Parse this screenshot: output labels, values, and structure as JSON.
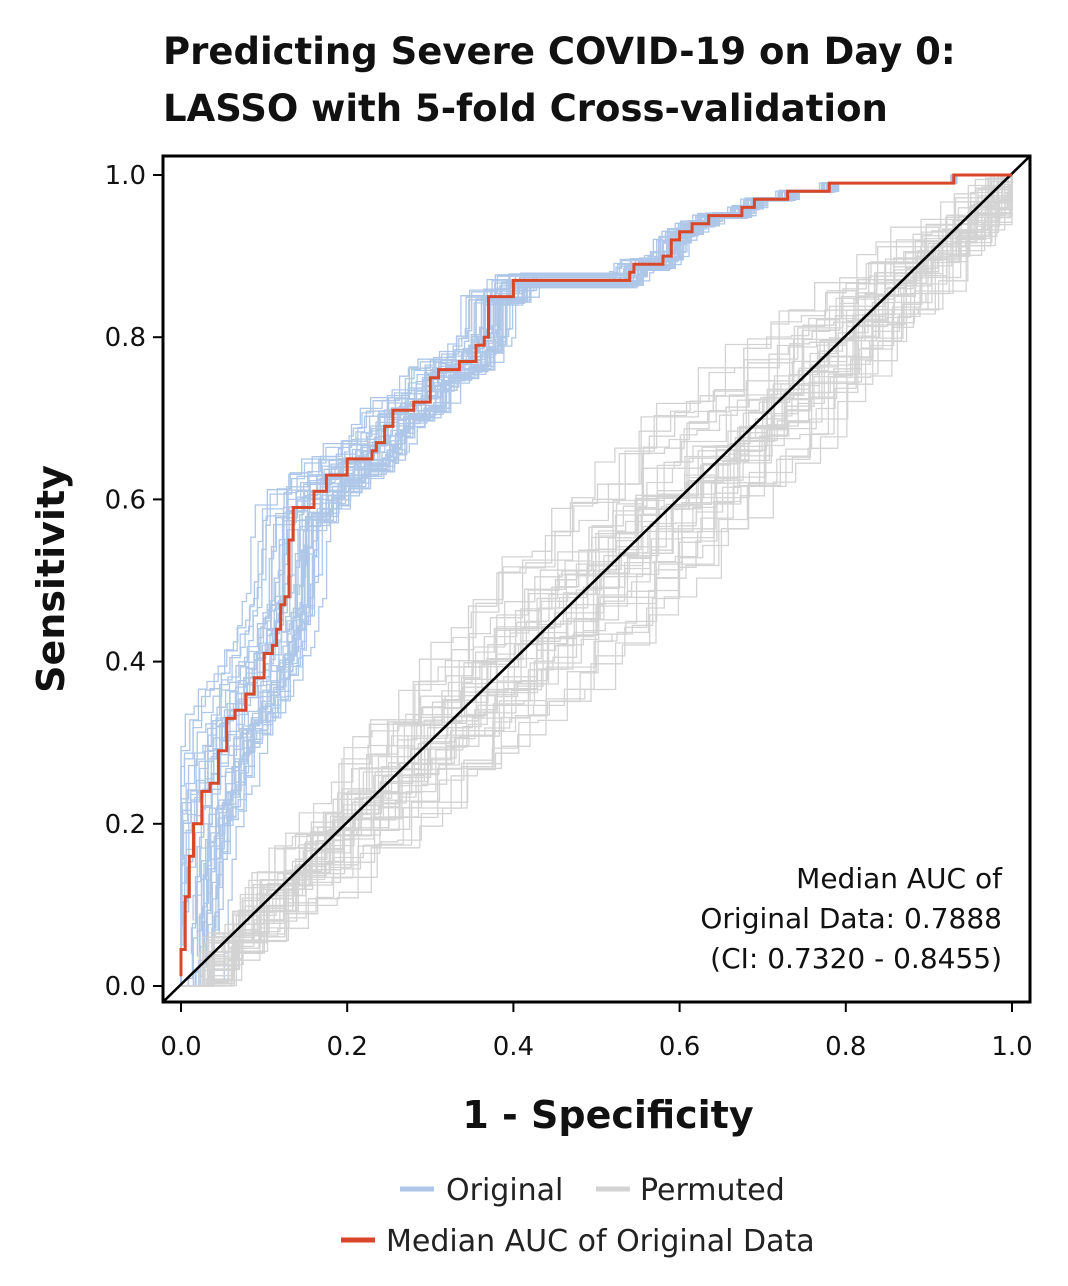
{
  "chart_data": {
    "type": "line",
    "title_line1": "Predicting Severe COVID-19 on Day 0:",
    "title_line2": "LASSO with 5-fold Cross-validation",
    "xlabel": "1 - Specificity",
    "ylabel": "Sensitivity",
    "xlim": [
      0.0,
      1.0
    ],
    "ylim": [
      0.0,
      1.0
    ],
    "x_ticks": [
      "0.0",
      "0.2",
      "0.4",
      "0.6",
      "0.8",
      "1.0"
    ],
    "y_ticks": [
      "0.0",
      "0.2",
      "0.4",
      "0.6",
      "0.8",
      "1.0"
    ],
    "grid": false,
    "legend_position": "bottom",
    "annotation": [
      "Median AUC of",
      "Original Data: 0.7888",
      "(CI: 0.7320 - 0.8455)"
    ],
    "legend": {
      "original": "Original",
      "permuted": "Permuted",
      "median": "Median AUC of Original Data"
    },
    "colors": {
      "original": "#aec7e8",
      "permuted": "#d3d3d3",
      "median": "#d9472b",
      "diagonal": "#000000"
    },
    "series": [
      {
        "name": "Median AUC of Original Data",
        "x": [
          0.0,
          0.0,
          0.005,
          0.005,
          0.01,
          0.01,
          0.015,
          0.015,
          0.025,
          0.025,
          0.035,
          0.035,
          0.045,
          0.045,
          0.055,
          0.055,
          0.065,
          0.065,
          0.078,
          0.078,
          0.088,
          0.088,
          0.1,
          0.1,
          0.11,
          0.11,
          0.115,
          0.115,
          0.12,
          0.12,
          0.125,
          0.125,
          0.13,
          0.13,
          0.135,
          0.135,
          0.16,
          0.16,
          0.175,
          0.175,
          0.2,
          0.2,
          0.23,
          0.23,
          0.235,
          0.235,
          0.245,
          0.245,
          0.255,
          0.255,
          0.28,
          0.28,
          0.3,
          0.3,
          0.31,
          0.31,
          0.335,
          0.335,
          0.355,
          0.355,
          0.365,
          0.365,
          0.37,
          0.37,
          0.4,
          0.4,
          0.41,
          0.41,
          0.54,
          0.54,
          0.545,
          0.545,
          0.58,
          0.58,
          0.59,
          0.59,
          0.6,
          0.6,
          0.615,
          0.615,
          0.635,
          0.635,
          0.675,
          0.675,
          0.69,
          0.69,
          0.73,
          0.73,
          0.78,
          0.78,
          0.93,
          0.93,
          1.0
        ],
        "y": [
          0.012,
          0.045,
          0.045,
          0.11,
          0.11,
          0.16,
          0.16,
          0.2,
          0.2,
          0.24,
          0.24,
          0.25,
          0.25,
          0.29,
          0.29,
          0.33,
          0.33,
          0.34,
          0.34,
          0.36,
          0.36,
          0.38,
          0.38,
          0.41,
          0.41,
          0.42,
          0.42,
          0.44,
          0.44,
          0.47,
          0.47,
          0.48,
          0.48,
          0.55,
          0.55,
          0.59,
          0.59,
          0.61,
          0.61,
          0.63,
          0.63,
          0.65,
          0.65,
          0.66,
          0.66,
          0.67,
          0.67,
          0.69,
          0.69,
          0.71,
          0.71,
          0.72,
          0.72,
          0.75,
          0.75,
          0.76,
          0.76,
          0.77,
          0.77,
          0.79,
          0.79,
          0.8,
          0.8,
          0.85,
          0.85,
          0.87,
          0.87,
          0.87,
          0.87,
          0.88,
          0.88,
          0.89,
          0.89,
          0.9,
          0.9,
          0.92,
          0.92,
          0.93,
          0.93,
          0.94,
          0.94,
          0.95,
          0.95,
          0.96,
          0.96,
          0.97,
          0.97,
          0.98,
          0.98,
          0.99,
          0.99,
          1.0,
          1.0
        ]
      }
    ]
  }
}
